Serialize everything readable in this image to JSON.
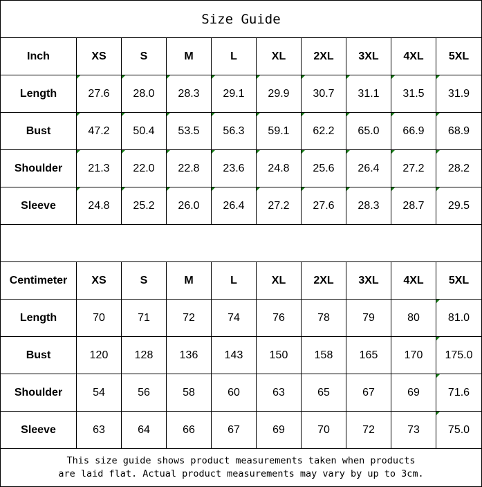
{
  "title": "Size Guide",
  "sizes": [
    "XS",
    "S",
    "M",
    "L",
    "XL",
    "2XL",
    "3XL",
    "4XL",
    "5XL"
  ],
  "tables": [
    {
      "unit": "Inch",
      "rows": [
        {
          "label": "Length",
          "values": [
            "27.6",
            "28.0",
            "28.3",
            "29.1",
            "29.9",
            "30.7",
            "31.1",
            "31.5",
            "31.9"
          ]
        },
        {
          "label": "Bust",
          "values": [
            "47.2",
            "50.4",
            "53.5",
            "56.3",
            "59.1",
            "62.2",
            "65.0",
            "66.9",
            "68.9"
          ]
        },
        {
          "label": "Shoulder",
          "values": [
            "21.3",
            "22.0",
            "22.8",
            "23.6",
            "24.8",
            "25.6",
            "26.4",
            "27.2",
            "28.2"
          ]
        },
        {
          "label": "Sleeve",
          "values": [
            "24.8",
            "25.2",
            "26.0",
            "26.4",
            "27.2",
            "27.6",
            "28.3",
            "28.7",
            "29.5"
          ]
        }
      ]
    },
    {
      "unit": "Centimeter",
      "rows": [
        {
          "label": "Length",
          "values": [
            "70",
            "71",
            "72",
            "74",
            "76",
            "78",
            "79",
            "80",
            "81.0"
          ]
        },
        {
          "label": "Bust",
          "values": [
            "120",
            "128",
            "136",
            "143",
            "150",
            "158",
            "165",
            "170",
            "175.0"
          ]
        },
        {
          "label": "Shoulder",
          "values": [
            "54",
            "56",
            "58",
            "60",
            "63",
            "65",
            "67",
            "69",
            "71.6"
          ]
        },
        {
          "label": "Sleeve",
          "values": [
            "63",
            "64",
            "66",
            "67",
            "69",
            "70",
            "72",
            "73",
            "75.0"
          ]
        }
      ]
    }
  ],
  "note": {
    "line1": "This size guide shows product measurements taken when products",
    "line2": "are laid flat. Actual product measurements may vary by up to 3cm."
  },
  "colors": {
    "text_number_indicator": "#1a7f1a"
  }
}
